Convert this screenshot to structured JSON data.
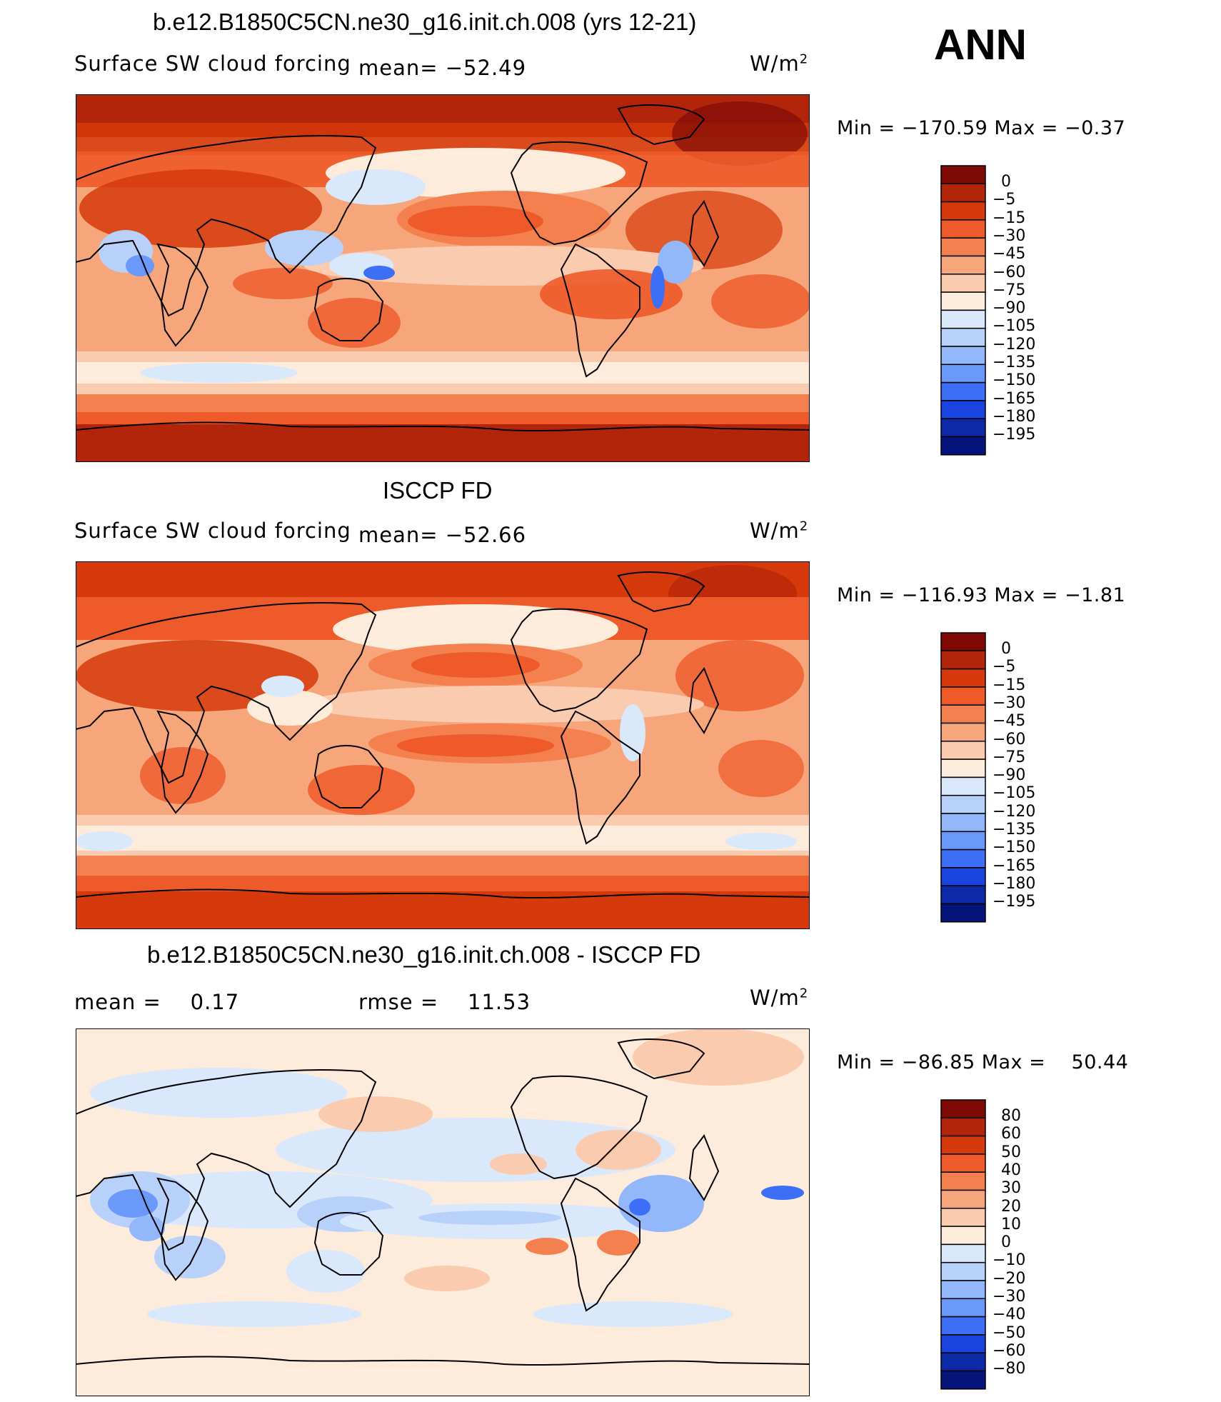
{
  "season": "ANN",
  "panels": [
    {
      "title": "b.e12.B1850C5CN.ne30_g16.init.ch.008 (yrs 12-21)",
      "left_label": "Surface SW cloud forcing",
      "stat_label": "mean= −52.49",
      "rmse_label": "",
      "units": "W/m",
      "units_sup": "2",
      "minmax": "Min = −170.59 Max = −0.37",
      "colorbar": [
        "0",
        "−5",
        "−15",
        "−30",
        "−45",
        "−60",
        "−75",
        "−90",
        "−105",
        "−120",
        "−135",
        "−150",
        "−165",
        "−180",
        "−195"
      ],
      "colorbar_colors": [
        "#7f0a05",
        "#b3250a",
        "#d63a0c",
        "#ee5a2a",
        "#f5804f",
        "#f7a57b",
        "#fbcbb0",
        "#fdebdc",
        "#d9e8fb",
        "#b7d1fa",
        "#93b7fb",
        "#6a98fb",
        "#3c6ff5",
        "#1a44e0",
        "#0c2aa8",
        "#04147a"
      ]
    },
    {
      "title": "ISCCP FD",
      "left_label": "Surface SW cloud forcing",
      "stat_label": "mean= −52.66",
      "rmse_label": "",
      "units": "W/m",
      "units_sup": "2",
      "minmax": "Min = −116.93 Max = −1.81",
      "colorbar": [
        "0",
        "−5",
        "−15",
        "−30",
        "−45",
        "−60",
        "−75",
        "−90",
        "−105",
        "−120",
        "−135",
        "−150",
        "−165",
        "−180",
        "−195"
      ],
      "colorbar_colors": [
        "#7f0a05",
        "#b3250a",
        "#d63a0c",
        "#ee5a2a",
        "#f5804f",
        "#f7a57b",
        "#fbcbb0",
        "#fdebdc",
        "#d9e8fb",
        "#b7d1fa",
        "#93b7fb",
        "#6a98fb",
        "#3c6ff5",
        "#1a44e0",
        "#0c2aa8",
        "#04147a"
      ]
    },
    {
      "title": "b.e12.B1850C5CN.ne30_g16.init.ch.008 - ISCCP FD",
      "left_label": "mean =    0.17",
      "stat_label": "",
      "rmse_label": "rmse =    11.53",
      "units": "W/m",
      "units_sup": "2",
      "minmax": "Min = −86.85 Max =    50.44",
      "colorbar": [
        "80",
        "60",
        "50",
        "40",
        "30",
        "20",
        "10",
        "0",
        "−10",
        "−20",
        "−30",
        "−40",
        "−50",
        "−60",
        "−80"
      ],
      "colorbar_colors": [
        "#7f0a05",
        "#b3250a",
        "#d63a0c",
        "#ee5a2a",
        "#f5804f",
        "#f7a57b",
        "#fbcbb0",
        "#fdebdc",
        "#d9e8fb",
        "#b7d1fa",
        "#93b7fb",
        "#6a98fb",
        "#3c6ff5",
        "#1a44e0",
        "#0c2aa8",
        "#04147a"
      ]
    }
  ]
}
